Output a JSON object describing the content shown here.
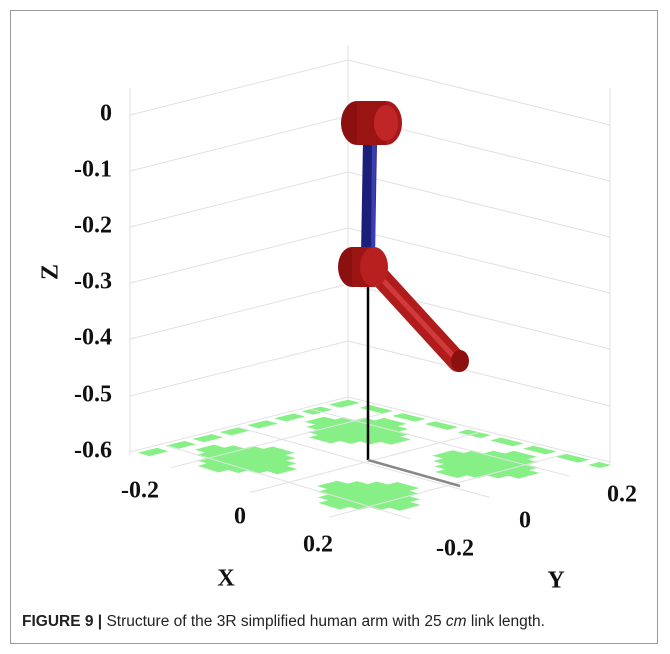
{
  "figure": {
    "axes": {
      "z_label": "Z",
      "x_label": "X",
      "y_label": "Y",
      "z_ticks": [
        0,
        -0.1,
        -0.2,
        -0.3,
        -0.4,
        -0.5,
        -0.6
      ],
      "x_ticks": [
        -0.2,
        0,
        0.2
      ],
      "y_ticks": [
        0.2,
        0,
        -0.2
      ]
    },
    "caption": {
      "label": "FIGURE 9 |",
      "text_before": "Structure of the 3R simplified human arm with 25",
      "emphasis": "cm",
      "text_after": "link length."
    }
  }
}
